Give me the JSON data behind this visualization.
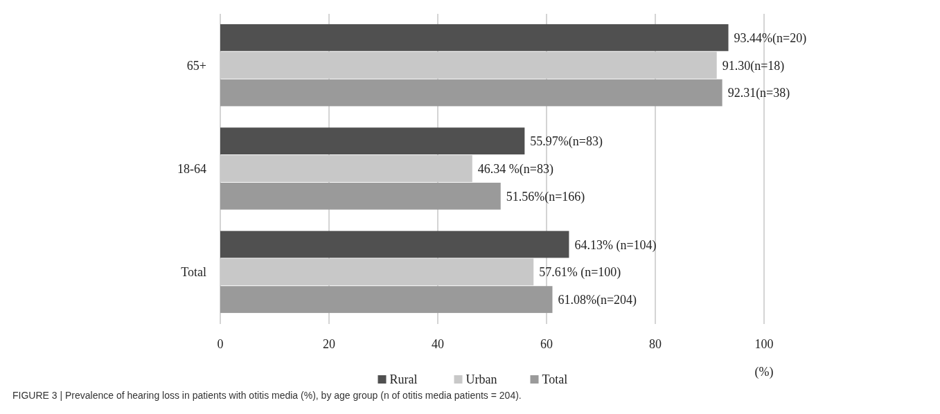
{
  "chart_data": {
    "type": "bar",
    "orientation": "horizontal",
    "categories": [
      "65+",
      "18-64",
      "Total"
    ],
    "series": [
      {
        "name": "Rural",
        "color": "#505050",
        "values": [
          93.44,
          55.97,
          64.13
        ],
        "value_labels": [
          "93.44%(n=20)",
          "55.97%(n=83)",
          "64.13% (n=104)"
        ]
      },
      {
        "name": "Urban",
        "color": "#c8c8c8",
        "values": [
          91.3,
          46.34,
          57.61
        ],
        "value_labels": [
          "91.30(n=18)",
          "46.34 %(n=83)",
          "57.61% (n=100)"
        ]
      },
      {
        "name": "Total",
        "color": "#9a9a9a",
        "values": [
          92.31,
          51.56,
          61.08
        ],
        "value_labels": [
          "92.31(n=38)",
          "51.56%(n=166)",
          "61.08%(n=204)"
        ]
      }
    ],
    "xlim": [
      0,
      100
    ],
    "xticks": [
      0,
      20,
      40,
      60,
      80,
      100
    ],
    "xlabel": "(%)",
    "grid": "x",
    "legend": "bottom",
    "annotations": [
      "FIGURE 3 | Prevalence of hearing loss in patients with otitis media (%), by age group (n of otitis media patients = 204)."
    ]
  }
}
